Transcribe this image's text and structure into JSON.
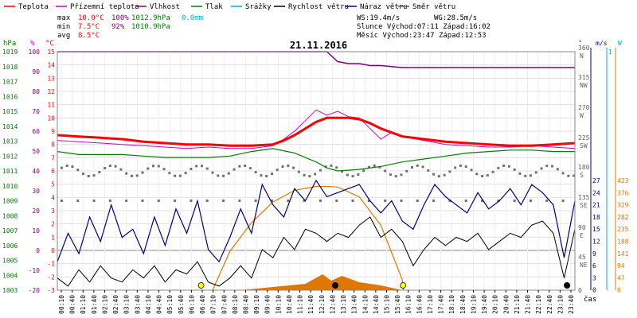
{
  "legend": [
    {
      "label": "Teplota",
      "color": "#ff0000"
    },
    {
      "label": "Přízemní teplota",
      "color": "#cc00cc"
    },
    {
      "label": "Vlhkost",
      "color": "#800080"
    },
    {
      "label": "Tlak",
      "color": "#008000"
    },
    {
      "label": "Srážky",
      "color": "#00b0d0"
    },
    {
      "label": "Rychlost větru",
      "color": "#000000"
    },
    {
      "label": "Náraz větru",
      "color": "#000080"
    },
    {
      "label": "Směr větru",
      "color": "#606060"
    }
  ],
  "stats": {
    "max_label": "max",
    "max_temp": "10.0°C",
    "max_hum": "100%",
    "max_press": "1012.9hPa",
    "max_rain": "0.0mm",
    "min_label": "min",
    "min_temp": "7.5°C",
    "min_hum": "92%",
    "min_press": "1010.9hPa",
    "avg_label": "avg",
    "avg_temp": "8.5°C",
    "ws": "WS:19.4m/s",
    "wg": "WG:28.5m/s",
    "sun": "Slunce Východ:07:11  Západ:16:02",
    "moon": "Měsíc  Východ:23:47  Západ:12:53"
  },
  "colors": {
    "temp": "#ff0000",
    "ground": "#cc00cc",
    "hum": "#800080",
    "press": "#008000",
    "rain": "#00b0d0",
    "speed": "#000000",
    "gust": "#000080",
    "dir": "#606060",
    "sun": "#e07800"
  },
  "chart_data": {
    "type": "line",
    "title": "21.11.2016",
    "xlabel": "čas",
    "x_ticks": [
      "00:10",
      "00:40",
      "01:10",
      "01:40",
      "02:10",
      "02:40",
      "03:10",
      "03:40",
      "04:10",
      "04:40",
      "05:10",
      "05:40",
      "06:10",
      "06:40",
      "07:10",
      "07:40",
      "08:10",
      "08:40",
      "09:10",
      "09:40",
      "10:10",
      "10:40",
      "11:10",
      "11:40",
      "12:10",
      "12:40",
      "13:10",
      "13:40",
      "14:10",
      "14:40",
      "15:10",
      "15:40",
      "16:10",
      "16:40",
      "17:10",
      "17:40",
      "18:10",
      "18:40",
      "19:10",
      "19:40",
      "20:10",
      "20:40",
      "21:10",
      "21:40",
      "22:10",
      "22:40",
      "23:10",
      "23:40"
    ],
    "axes": {
      "hpa": {
        "label": "hPa",
        "ticks": [
          1019,
          1018,
          1017,
          1016,
          1015,
          1014,
          1013,
          1012,
          1011,
          1010,
          1009,
          1008,
          1007,
          1006,
          1005,
          1004,
          1003
        ]
      },
      "pct": {
        "label": "%",
        "ticks": [
          100,
          90,
          80,
          70,
          60,
          50,
          40,
          30,
          20,
          10,
          0,
          -10,
          -20
        ]
      },
      "temp": {
        "label": "°C",
        "ticks": [
          15,
          14,
          13,
          12,
          11,
          10,
          9,
          8,
          7,
          6,
          5,
          4,
          3,
          2,
          1,
          0,
          -1,
          -2,
          -3
        ]
      },
      "dir": {
        "label": "°",
        "ticks": [
          "360 N",
          "315 NW",
          "270 W",
          "225 SW",
          "180 S",
          "135 SE",
          "90 E",
          "45 NE",
          "0"
        ]
      },
      "ms": {
        "label": "m/s",
        "ticks": [
          "27",
          "24",
          "21",
          "18",
          "15",
          "12",
          "9",
          "6",
          "3",
          "0"
        ]
      },
      "mm": {
        "label": "mm/h",
        "ticks": [
          "1",
          "0"
        ]
      },
      "wm2": {
        "label": "W",
        "ticks": [
          "423",
          "376",
          "329",
          "282",
          "235",
          "188",
          "141",
          "94",
          "47",
          "0"
        ]
      }
    },
    "series": [
      {
        "name": "Teplota",
        "x": [
          0,
          1,
          2,
          3,
          4,
          5,
          6,
          7,
          8,
          9,
          10,
          10.5,
          11,
          11.5,
          12,
          12.5,
          13,
          13.5,
          14,
          14.5,
          15,
          15.5,
          16,
          17,
          18,
          19,
          20,
          21,
          22,
          23,
          24
        ],
        "y": [
          8.7,
          8.6,
          8.5,
          8.4,
          8.2,
          8.1,
          8.0,
          8.0,
          7.9,
          7.9,
          8.0,
          8.3,
          8.7,
          9.2,
          9.7,
          10.0,
          10.0,
          10.0,
          9.9,
          9.6,
          9.2,
          8.9,
          8.6,
          8.4,
          8.2,
          8.1,
          8.0,
          7.9,
          7.9,
          8.0,
          8.1
        ]
      },
      {
        "name": "Přízemní teplota",
        "x": [
          0,
          1,
          2,
          3,
          4,
          5,
          6,
          7,
          8,
          9,
          10,
          10.5,
          11,
          11.5,
          12,
          12.5,
          13,
          13.5,
          14,
          14.5,
          15,
          15.5,
          16,
          17,
          18,
          19,
          20,
          21,
          22,
          23,
          24
        ],
        "y": [
          8.3,
          8.2,
          8.1,
          8.0,
          7.9,
          7.8,
          7.7,
          7.8,
          7.7,
          7.7,
          7.9,
          8.4,
          9.0,
          9.8,
          10.6,
          10.2,
          10.5,
          10.1,
          10.0,
          9.2,
          8.4,
          8.9,
          8.6,
          8.3,
          8.0,
          7.9,
          7.8,
          7.8,
          7.9,
          7.8,
          7.7
        ]
      },
      {
        "name": "Vlhkost",
        "x": [
          0,
          12.5,
          13,
          13.5,
          14,
          14.5,
          15,
          15.5,
          16,
          17,
          18,
          19,
          20,
          21,
          22,
          23,
          24
        ],
        "y": [
          100,
          100,
          95,
          94,
          94,
          93,
          93,
          92.5,
          92,
          92,
          92,
          92,
          92,
          92,
          92,
          92,
          92
        ]
      },
      {
        "name": "Tlak",
        "x": [
          0,
          1,
          2,
          3,
          4,
          5,
          6,
          7,
          8,
          9,
          10,
          11,
          12,
          12.5,
          13,
          14,
          15,
          16,
          17,
          18,
          19,
          20,
          21,
          22,
          23,
          24
        ],
        "y": [
          1012.3,
          1012.1,
          1012.1,
          1012.1,
          1012.0,
          1011.9,
          1011.9,
          1011.9,
          1012.0,
          1012.3,
          1012.5,
          1012.2,
          1011.6,
          1011.2,
          1011.0,
          1011.1,
          1011.3,
          1011.6,
          1011.8,
          1012.0,
          1012.2,
          1012.3,
          1012.4,
          1012.4,
          1012.3,
          1012.3
        ]
      },
      {
        "name": "Rychlost větru",
        "x": [
          0,
          0.5,
          1,
          1.5,
          2,
          2.5,
          3,
          3.5,
          4,
          4.5,
          5,
          5.5,
          6,
          6.5,
          7,
          7.5,
          8,
          8.5,
          9,
          9.5,
          10,
          10.5,
          11,
          11.5,
          12,
          12.5,
          13,
          13.5,
          14,
          14.5,
          15,
          15.5,
          16,
          16.5,
          17,
          17.5,
          18,
          18.5,
          19,
          19.5,
          20,
          20.5,
          21,
          21.5,
          22,
          22.5,
          23,
          23.5,
          24
        ],
        "y": [
          3,
          1,
          5,
          2,
          6,
          3,
          2,
          5,
          3,
          6,
          2,
          5,
          4,
          7,
          2,
          1,
          3,
          6,
          3,
          10,
          8,
          13,
          10,
          15,
          14,
          12,
          14,
          13,
          16,
          18,
          13,
          15,
          12,
          6,
          10,
          13,
          11,
          13,
          12,
          14,
          10,
          12,
          14,
          13,
          16,
          17,
          14,
          3,
          15
        ]
      },
      {
        "name": "Náraz větru",
        "x": [
          0,
          0.5,
          1,
          1.5,
          2,
          2.5,
          3,
          3.5,
          4,
          4.5,
          5,
          5.5,
          6,
          6.5,
          7,
          7.5,
          8,
          8.5,
          9,
          9.5,
          10,
          10.5,
          11,
          11.5,
          12,
          12.5,
          13,
          13.5,
          14,
          14.5,
          15,
          15.5,
          16,
          16.5,
          17,
          17.5,
          18,
          18.5,
          19,
          19.5,
          20,
          20.5,
          21,
          21.5,
          22,
          22.5,
          23,
          23.5,
          24
        ],
        "y": [
          7,
          14,
          9,
          18,
          12,
          21,
          13,
          15,
          9,
          18,
          11,
          20,
          14,
          22,
          10,
          7,
          13,
          20,
          14,
          26,
          21,
          18,
          25,
          22,
          27,
          23,
          24,
          25,
          26,
          22,
          19,
          22,
          17,
          15,
          21,
          26,
          23,
          21,
          19,
          24,
          20,
          22,
          25,
          21,
          26,
          24,
          21,
          8,
          22
        ]
      },
      {
        "name": "Směr větru",
        "x": [
          0,
          1,
          2,
          3,
          4,
          5,
          6,
          7,
          8,
          9,
          10,
          11,
          12,
          13,
          14,
          15,
          16,
          17,
          18,
          19,
          20,
          21,
          22,
          23,
          24
        ],
        "y": [
          185,
          185,
          185,
          185,
          185,
          185,
          185,
          185,
          185,
          185,
          185,
          185,
          188,
          192,
          195,
          192,
          180,
          178,
          180,
          180,
          180,
          180,
          180,
          180,
          180
        ]
      },
      {
        "name": "Slunce",
        "x": [
          7.2,
          8,
          9,
          10,
          11,
          12,
          12.5,
          13,
          14,
          15,
          16,
          16.05
        ],
        "y": [
          0,
          150,
          260,
          340,
          385,
          400,
          400,
          398,
          360,
          250,
          40,
          0
        ]
      }
    ],
    "markers": {
      "sunrise": "07:11",
      "sunset": "16:02",
      "moonset": "12:53",
      "moonrise": "23:47"
    }
  }
}
